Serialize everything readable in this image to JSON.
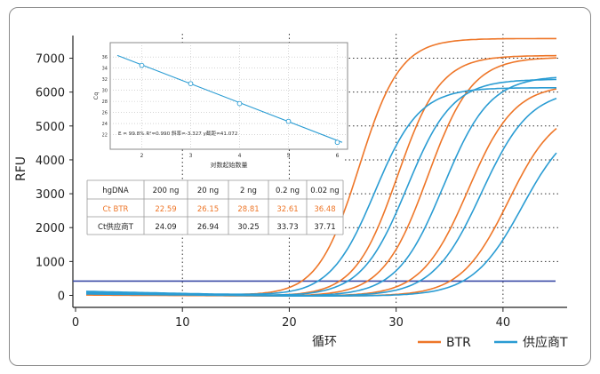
{
  "chart_data": {
    "type": "line",
    "xlabel": "循环",
    "ylabel": "RFU",
    "xlim": [
      0,
      46
    ],
    "ylim": [
      -200,
      7600
    ],
    "x_ticks": [
      0,
      10,
      20,
      30,
      40
    ],
    "y_ticks": [
      0,
      1000,
      2000,
      3000,
      4000,
      5000,
      6000,
      7000
    ],
    "threshold": 420,
    "grid": "dotted vertical lines at 10, 20, 30, 40; dotted horizontal lines at 1000-7000 above the table",
    "legend_position": "bottom-right",
    "series": [
      {
        "name": "BTR",
        "color": "#ee7628",
        "curves": [
          {
            "ct": 22.59,
            "plateau": 7600,
            "slope": 0.52,
            "start": 100
          },
          {
            "ct": 26.15,
            "plateau": 7100,
            "slope": 0.5,
            "start": 60
          },
          {
            "ct": 28.81,
            "plateau": 7050,
            "slope": 0.48,
            "start": 50
          },
          {
            "ct": 32.61,
            "plateau": 6250,
            "slope": 0.46,
            "start": 40
          },
          {
            "ct": 36.48,
            "plateau": 5600,
            "slope": 0.45,
            "start": 30
          }
        ]
      },
      {
        "name": "供应商T",
        "color": "#2a9cd3",
        "curves": [
          {
            "ct": 24.09,
            "plateau": 6150,
            "slope": 0.48,
            "start": 140
          },
          {
            "ct": 26.94,
            "plateau": 6400,
            "slope": 0.47,
            "start": 120
          },
          {
            "ct": 30.25,
            "plateau": 6500,
            "slope": 0.46,
            "start": 100
          },
          {
            "ct": 33.73,
            "plateau": 6100,
            "slope": 0.44,
            "start": 80
          },
          {
            "ct": 37.71,
            "plateau": 5300,
            "slope": 0.43,
            "start": 60
          }
        ]
      }
    ]
  },
  "inset": {
    "xlabel": "对数起始数量",
    "ylabel": "Cq",
    "x_ticks": [
      2,
      3,
      4,
      5,
      6
    ],
    "y_ticks": [
      22,
      24,
      26,
      28,
      30,
      32,
      34,
      36
    ],
    "xlim": [
      1.5,
      6.1
    ],
    "ylim": [
      20,
      37
    ],
    "points": [
      {
        "x": 2,
        "y": 34.5
      },
      {
        "x": 3,
        "y": 31.2
      },
      {
        "x": 4,
        "y": 27.6
      },
      {
        "x": 5,
        "y": 24.4
      },
      {
        "x": 6,
        "y": 20.6
      }
    ],
    "fit": {
      "x": [
        1.5,
        6.1
      ],
      "y": [
        36.3,
        20.6
      ]
    },
    "equation": "E = 99.8% R²=0.990 斜率=-3.327 y截距=41.072"
  },
  "table": {
    "headers": [
      "hgDNA",
      "200 ng",
      "20 ng",
      "2 ng",
      "0.2 ng",
      "0.02 ng"
    ],
    "rows": [
      {
        "label": "Ct BTR",
        "values": [
          "22.59",
          "26.15",
          "28.81",
          "32.61",
          "36.48"
        ],
        "color": "#ee7628"
      },
      {
        "label": "Ct供应商T",
        "values": [
          "24.09",
          "26.94",
          "30.25",
          "33.73",
          "37.71"
        ],
        "color": "#222222"
      }
    ]
  },
  "legend": [
    {
      "label": "BTR",
      "color": "#ee7628"
    },
    {
      "label": "供应商T",
      "color": "#2a9cd3"
    }
  ]
}
